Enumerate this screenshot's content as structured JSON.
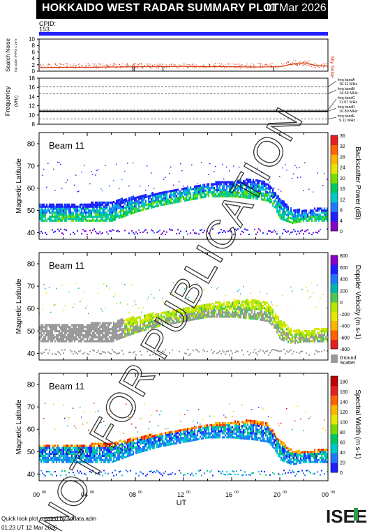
{
  "header": {
    "title": "HOKKAIDO WEST RADAR SUMMARY PLOT",
    "date": "11 Mar 2026",
    "cpid_label": "CPID:",
    "cpid_value": "153"
  },
  "colors": {
    "title_bg": "#000000",
    "cpid_bar": "#1f1fff",
    "noise_line": "#d83a10",
    "ground_scatter": "#9a9a9a",
    "watermark": "#000000"
  },
  "watermark": "NOT FOR PUBLICATION",
  "footer": {
    "created_by": "Quick look plot created by sddata.adm",
    "timestamp": "01:23 UT 12 Mar 2026"
  },
  "logo_text": "ISEE",
  "chart_data": [
    {
      "type": "line",
      "panel": "search-noise",
      "ylabel": "Search Noise",
      "ylabel_sub": "log scale: (P/P0) x 10^2",
      "ylim": [
        0,
        10
      ],
      "yticks": [
        "0",
        "2",
        "4",
        "6",
        "8",
        "10"
      ],
      "series": [
        {
          "name": "Sky Noise",
          "x": [
            0,
            2,
            4,
            6,
            8,
            10,
            12,
            14,
            16,
            18,
            20,
            21,
            22,
            23,
            24
          ],
          "values": [
            1.1,
            1.2,
            1.2,
            1.3,
            1.4,
            1.4,
            1.5,
            1.4,
            1.4,
            1.3,
            1.4,
            2.2,
            2.6,
            1.8,
            1.6
          ]
        }
      ],
      "xlim": [
        0,
        24
      ]
    },
    {
      "type": "line",
      "panel": "frequency",
      "ylabel": "Frequency",
      "ylabel_unit": "(MHz)",
      "ylim": [
        8,
        18
      ],
      "yticks": [
        "8",
        "10",
        "12",
        "14",
        "16",
        "18"
      ],
      "bands": [
        {
          "label": "freq bandA",
          "value": "16.11 MHz",
          "y": 16.11
        },
        {
          "label": "freq bandB",
          "value": "14.64 MHz",
          "y": 14.64
        },
        {
          "label": "freq bandC",
          "value": "11.07 MHz",
          "y": 11.07
        },
        {
          "label": "freq bandD",
          "value": "10.80 MHz",
          "y": 10.8
        },
        {
          "label": "freq bandE",
          "value": "9.11 MHz",
          "y": 9.11
        }
      ],
      "operating_frequency": 10.8,
      "xlim": [
        0,
        24
      ]
    },
    {
      "type": "heatmap",
      "panel": "power",
      "beam_label": "Beam 11",
      "ylabel": "Magnetic Latitude",
      "ylim": [
        37,
        85
      ],
      "yticks": [
        "40",
        "50",
        "60",
        "70",
        "80"
      ],
      "colorbar_label": "Backscatter Power (dB)",
      "colorbar_ticks": [
        "0",
        "4",
        "8",
        "12",
        "16",
        "20",
        "24",
        "28",
        "32",
        "36"
      ],
      "colorbar_range": [
        0,
        36
      ],
      "scatter_band": {
        "x": [
          0,
          2,
          4,
          6,
          7,
          8,
          10,
          12,
          14,
          16,
          18,
          19,
          19.5,
          20,
          21,
          22,
          24
        ],
        "lower": [
          45,
          45,
          45,
          45,
          47,
          49,
          52,
          54,
          56,
          56,
          55,
          54,
          51,
          46,
          44,
          45,
          45
        ],
        "upper": [
          53,
          53,
          53,
          54,
          55,
          56,
          58,
          60,
          62,
          63,
          64,
          62,
          58,
          55,
          50,
          50,
          51
        ]
      },
      "xlim": [
        0,
        24
      ]
    },
    {
      "type": "heatmap",
      "panel": "velocity",
      "beam_label": "Beam 11",
      "ylabel": "Magnetic Latitude",
      "ylim": [
        37,
        85
      ],
      "yticks": [
        "40",
        "50",
        "60",
        "70",
        "80"
      ],
      "colorbar_label": "Doppler Velocity (m s-1)",
      "colorbar_ticks": [
        "800",
        "600",
        "400",
        "200",
        "0",
        "-200",
        "-400",
        "-600",
        "-800"
      ],
      "colorbar_range": [
        -800,
        800
      ],
      "ground_scatter_label": "Ground Scatter",
      "xlim": [
        0,
        24
      ]
    },
    {
      "type": "heatmap",
      "panel": "width",
      "beam_label": "Beam 11",
      "ylabel": "Magnetic Latitude",
      "ylim": [
        37,
        85
      ],
      "yticks": [
        "40",
        "50",
        "60",
        "70",
        "80"
      ],
      "colorbar_label": "Spectral Width (m s-1)",
      "colorbar_ticks": [
        "0",
        "20",
        "40",
        "60",
        "80",
        "100",
        "120",
        "140",
        "160",
        "180"
      ],
      "colorbar_range": [
        0,
        190
      ],
      "xlabel": "UT",
      "xticks": [
        "00",
        "04",
        "08",
        "12",
        "16",
        "20",
        "00"
      ],
      "xtick_sup": "00",
      "xlim": [
        0,
        24
      ]
    }
  ]
}
